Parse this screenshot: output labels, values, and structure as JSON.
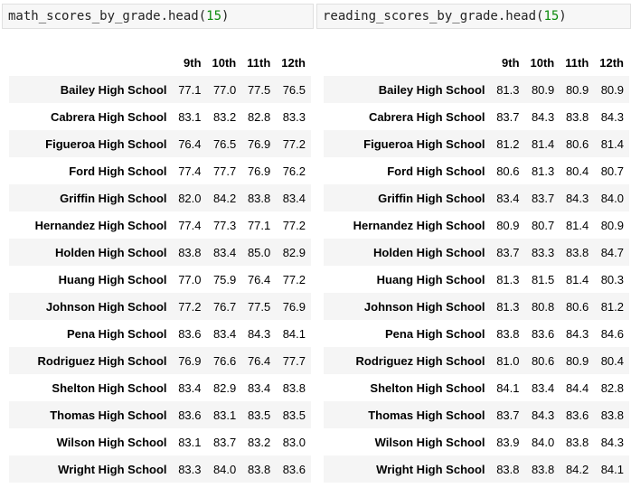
{
  "left": {
    "code_prefix": "math_scores_by_grade.head(",
    "code_arg": "15",
    "code_suffix": ")",
    "columns": [
      "9th",
      "10th",
      "11th",
      "12th"
    ],
    "rows": [
      {
        "school": "Bailey High School",
        "values": [
          "77.1",
          "77.0",
          "77.5",
          "76.5"
        ]
      },
      {
        "school": "Cabrera High School",
        "values": [
          "83.1",
          "83.2",
          "82.8",
          "83.3"
        ]
      },
      {
        "school": "Figueroa High School",
        "values": [
          "76.4",
          "76.5",
          "76.9",
          "77.2"
        ]
      },
      {
        "school": "Ford High School",
        "values": [
          "77.4",
          "77.7",
          "76.9",
          "76.2"
        ]
      },
      {
        "school": "Griffin High School",
        "values": [
          "82.0",
          "84.2",
          "83.8",
          "83.4"
        ]
      },
      {
        "school": "Hernandez High School",
        "values": [
          "77.4",
          "77.3",
          "77.1",
          "77.2"
        ]
      },
      {
        "school": "Holden High School",
        "values": [
          "83.8",
          "83.4",
          "85.0",
          "82.9"
        ]
      },
      {
        "school": "Huang High School",
        "values": [
          "77.0",
          "75.9",
          "76.4",
          "77.2"
        ]
      },
      {
        "school": "Johnson High School",
        "values": [
          "77.2",
          "76.7",
          "77.5",
          "76.9"
        ]
      },
      {
        "school": "Pena High School",
        "values": [
          "83.6",
          "83.4",
          "84.3",
          "84.1"
        ]
      },
      {
        "school": "Rodriguez High School",
        "values": [
          "76.9",
          "76.6",
          "76.4",
          "77.7"
        ]
      },
      {
        "school": "Shelton High School",
        "values": [
          "83.4",
          "82.9",
          "83.4",
          "83.8"
        ]
      },
      {
        "school": "Thomas High School",
        "values": [
          "83.6",
          "83.1",
          "83.5",
          "83.5"
        ]
      },
      {
        "school": "Wilson High School",
        "values": [
          "83.1",
          "83.7",
          "83.2",
          "83.0"
        ]
      },
      {
        "school": "Wright High School",
        "values": [
          "83.3",
          "84.0",
          "83.8",
          "83.6"
        ]
      }
    ]
  },
  "right": {
    "code_prefix": "reading_scores_by_grade.head(",
    "code_arg": "15",
    "code_suffix": ")",
    "columns": [
      "9th",
      "10th",
      "11th",
      "12th"
    ],
    "rows": [
      {
        "school": "Bailey High School",
        "values": [
          "81.3",
          "80.9",
          "80.9",
          "80.9"
        ]
      },
      {
        "school": "Cabrera High School",
        "values": [
          "83.7",
          "84.3",
          "83.8",
          "84.3"
        ]
      },
      {
        "school": "Figueroa High School",
        "values": [
          "81.2",
          "81.4",
          "80.6",
          "81.4"
        ]
      },
      {
        "school": "Ford High School",
        "values": [
          "80.6",
          "81.3",
          "80.4",
          "80.7"
        ]
      },
      {
        "school": "Griffin High School",
        "values": [
          "83.4",
          "83.7",
          "84.3",
          "84.0"
        ]
      },
      {
        "school": "Hernandez High School",
        "values": [
          "80.9",
          "80.7",
          "81.4",
          "80.9"
        ]
      },
      {
        "school": "Holden High School",
        "values": [
          "83.7",
          "83.3",
          "83.8",
          "84.7"
        ]
      },
      {
        "school": "Huang High School",
        "values": [
          "81.3",
          "81.5",
          "81.4",
          "80.3"
        ]
      },
      {
        "school": "Johnson High School",
        "values": [
          "81.3",
          "80.8",
          "80.6",
          "81.2"
        ]
      },
      {
        "school": "Pena High School",
        "values": [
          "83.8",
          "83.6",
          "84.3",
          "84.6"
        ]
      },
      {
        "school": "Rodriguez High School",
        "values": [
          "81.0",
          "80.6",
          "80.9",
          "80.4"
        ]
      },
      {
        "school": "Shelton High School",
        "values": [
          "84.1",
          "83.4",
          "84.4",
          "82.8"
        ]
      },
      {
        "school": "Thomas High School",
        "values": [
          "83.7",
          "84.3",
          "83.6",
          "83.8"
        ]
      },
      {
        "school": "Wilson High School",
        "values": [
          "83.9",
          "84.0",
          "83.8",
          "84.3"
        ]
      },
      {
        "school": "Wright High School",
        "values": [
          "83.8",
          "83.8",
          "84.2",
          "84.1"
        ]
      }
    ]
  }
}
